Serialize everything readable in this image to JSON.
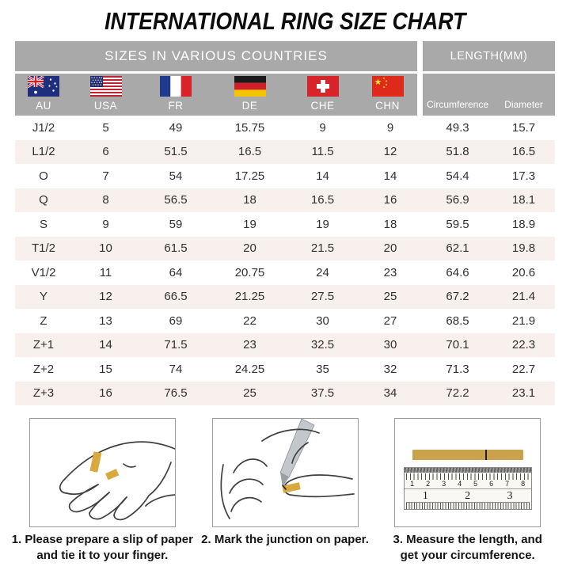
{
  "title": "INTERNATIONAL RING SIZE CHART",
  "table": {
    "group_left": "SIZES IN VARIOUS COUNTRIES",
    "group_right": "LENGTH(MM)",
    "columns": [
      {
        "code": "AU",
        "flag_icon": "australia-flag-icon"
      },
      {
        "code": "USA",
        "flag_icon": "usa-flag-icon"
      },
      {
        "code": "FR",
        "flag_icon": "france-flag-icon"
      },
      {
        "code": "DE",
        "flag_icon": "germany-flag-icon"
      },
      {
        "code": "CHE",
        "flag_icon": "switzerland-flag-icon"
      },
      {
        "code": "CHN",
        "flag_icon": "china-flag-icon"
      }
    ],
    "length_columns": [
      "Circumference",
      "Diameter"
    ],
    "rows": [
      [
        "J1/2",
        "5",
        "49",
        "15.75",
        "9",
        "9",
        "49.3",
        "15.7"
      ],
      [
        "L1/2",
        "6",
        "51.5",
        "16.5",
        "11.5",
        "12",
        "51.8",
        "16.5"
      ],
      [
        "O",
        "7",
        "54",
        "17.25",
        "14",
        "14",
        "54.4",
        "17.3"
      ],
      [
        "Q",
        "8",
        "56.5",
        "18",
        "16.5",
        "16",
        "56.9",
        "18.1"
      ],
      [
        "S",
        "9",
        "59",
        "19",
        "19",
        "18",
        "59.5",
        "18.9"
      ],
      [
        "T1/2",
        "10",
        "61.5",
        "20",
        "21.5",
        "20",
        "62.1",
        "19.8"
      ],
      [
        "V1/2",
        "11",
        "64",
        "20.75",
        "24",
        "23",
        "64.6",
        "20.6"
      ],
      [
        "Y",
        "12",
        "66.5",
        "21.25",
        "27.5",
        "25",
        "67.2",
        "21.4"
      ],
      [
        "Z",
        "13",
        "69",
        "22",
        "30",
        "27",
        "68.5",
        "21.9"
      ],
      [
        "Z+1",
        "14",
        "71.5",
        "23",
        "32.5",
        "30",
        "70.1",
        "22.3"
      ],
      [
        "Z+2",
        "15",
        "74",
        "24.25",
        "35",
        "32",
        "71.3",
        "22.7"
      ],
      [
        "Z+3",
        "16",
        "76.5",
        "25",
        "37.5",
        "34",
        "72.2",
        "23.1"
      ]
    ]
  },
  "instructions": [
    {
      "illustration": "hand-with-paper-strip-illustration",
      "line1": "1. Please prepare a slip of paper",
      "line2": "and tie it to your finger."
    },
    {
      "illustration": "pen-marking-junction-illustration",
      "line1": "2. Mark the junction on paper.",
      "line2": ""
    },
    {
      "illustration": "ruler-measuring-strip-illustration",
      "line1": "3. Measure the length, and",
      "line2": "get your circumference."
    }
  ],
  "ruler": {
    "top_numbers": [
      "1",
      "2",
      "3",
      "4",
      "5",
      "6",
      "7",
      "8"
    ],
    "bottom_numbers": [
      "1",
      "2",
      "3"
    ]
  },
  "colors": {
    "header_gray": "#a9a9a9",
    "row_stripe": "#f8f0ec",
    "paper_gold": "#d8a93f",
    "ruler_strip": "#c9a24b"
  }
}
